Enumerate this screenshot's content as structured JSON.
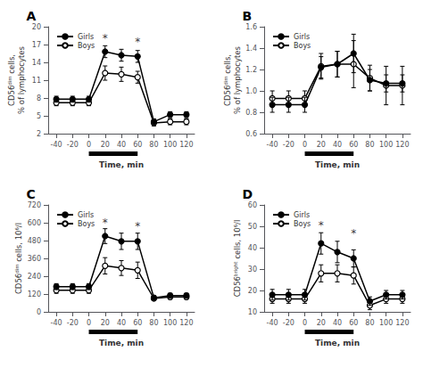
{
  "chart_data": [
    {
      "type": "line",
      "title": "A",
      "x": [
        -40,
        -20,
        0,
        20,
        40,
        60,
        80,
        100,
        120
      ],
      "series": [
        {
          "name": "Girls",
          "color": "#000000",
          "marker": "filled_circle",
          "values": [
            7.8,
            7.8,
            7.8,
            15.8,
            15.2,
            15.0,
            4.0,
            5.2,
            5.2
          ],
          "errors": [
            0.5,
            0.5,
            0.5,
            1.0,
            1.0,
            1.0,
            0.5,
            0.5,
            0.5
          ]
        },
        {
          "name": "Boys",
          "color": "#000000",
          "marker": "open_circle",
          "values": [
            7.2,
            7.2,
            7.2,
            12.2,
            12.0,
            11.5,
            3.8,
            4.0,
            4.0
          ],
          "errors": [
            0.5,
            0.5,
            0.5,
            1.2,
            1.2,
            1.0,
            0.5,
            0.5,
            0.5
          ]
        }
      ],
      "xlabel": "Time, min",
      "ylabel": "CD56ᵈⁱᵐ cells,\n% of lymphocytes",
      "xlim": [
        -50,
        130
      ],
      "xticks": [
        -40,
        -20,
        0,
        20,
        40,
        60,
        80,
        100,
        120
      ],
      "ylim": [
        2,
        20
      ],
      "yticks": [
        2,
        5,
        8,
        11,
        14,
        17,
        20
      ],
      "grid": false,
      "legend": "upper left",
      "annotations": [
        {
          "x": 20,
          "y": 17.2,
          "text": "*"
        },
        {
          "x": 60,
          "y": 16.5,
          "text": "*"
        }
      ],
      "exercise_bar": {
        "start": 0,
        "end": 60
      }
    },
    {
      "type": "line",
      "title": "B",
      "x": [
        -40,
        -20,
        0,
        20,
        40,
        60,
        80,
        100,
        120
      ],
      "series": [
        {
          "name": "Girls",
          "color": "#000000",
          "marker": "filled_circle",
          "values": [
            0.87,
            0.87,
            0.87,
            1.22,
            1.25,
            1.35,
            1.1,
            1.07,
            1.07
          ],
          "errors": [
            0.07,
            0.07,
            0.07,
            0.1,
            0.12,
            0.18,
            0.1,
            0.08,
            0.08
          ]
        },
        {
          "name": "Boys",
          "color": "#000000",
          "marker": "open_circle",
          "values": [
            0.93,
            0.93,
            0.93,
            1.23,
            1.25,
            1.25,
            1.12,
            1.05,
            1.05
          ],
          "errors": [
            0.07,
            0.07,
            0.07,
            0.12,
            0.12,
            0.22,
            0.12,
            0.18,
            0.18
          ]
        }
      ],
      "xlabel": "Time, min",
      "ylabel": "CD56ᵈⁱᵐ cells,\n% of lymphocytes",
      "xlim": [
        -50,
        130
      ],
      "xticks": [
        -40,
        -20,
        0,
        20,
        40,
        60,
        80,
        100,
        120
      ],
      "ylim": [
        0.6,
        1.6
      ],
      "yticks": [
        0.6,
        0.8,
        {
          "value": 1.0,
          "label": "1.0"
        },
        1.2,
        1.4,
        1.6
      ],
      "grid": false,
      "legend": "upper left",
      "annotations": [],
      "exercise_bar": {
        "start": 0,
        "end": 60
      }
    },
    {
      "type": "line",
      "title": "C",
      "x": [
        -40,
        -20,
        0,
        20,
        40,
        60,
        80,
        100,
        120
      ],
      "series": [
        {
          "name": "Girls",
          "color": "#000000",
          "marker": "filled_circle",
          "values": [
            170,
            170,
            170,
            510,
            475,
            475,
            95,
            110,
            110
          ],
          "errors": [
            20,
            20,
            20,
            50,
            55,
            55,
            15,
            15,
            15
          ]
        },
        {
          "name": "Boys",
          "color": "#000000",
          "marker": "open_circle",
          "values": [
            145,
            145,
            145,
            310,
            295,
            280,
            90,
            100,
            100
          ],
          "errors": [
            20,
            20,
            20,
            55,
            50,
            55,
            15,
            15,
            15
          ]
        }
      ],
      "xlabel": "Time, min",
      "ylabel": "CD56ᵈⁱᵐ cells, 10⁶/l",
      "xlim": [
        -50,
        130
      ],
      "xticks": [
        -40,
        -20,
        0,
        20,
        40,
        60,
        80,
        100,
        120
      ],
      "ylim": [
        0,
        720
      ],
      "yticks": [
        0,
        120,
        240,
        360,
        480,
        600,
        720
      ],
      "grid": false,
      "legend": "upper left",
      "annotations": [
        {
          "x": 20,
          "y": 565,
          "text": "*"
        },
        {
          "x": 60,
          "y": 540,
          "text": "*"
        }
      ],
      "exercise_bar": {
        "start": 0,
        "end": 60
      }
    },
    {
      "type": "line",
      "title": "D",
      "x": [
        -40,
        -20,
        0,
        20,
        40,
        60,
        80,
        100,
        120
      ],
      "series": [
        {
          "name": "Girls",
          "color": "#000000",
          "marker": "filled_circle",
          "values": [
            18,
            18,
            18,
            42,
            38,
            35,
            15,
            18,
            18
          ],
          "errors": [
            2.5,
            2.5,
            2.5,
            5,
            5,
            4,
            2,
            2,
            2
          ]
        },
        {
          "name": "Boys",
          "color": "#000000",
          "marker": "open_circle",
          "values": [
            16,
            16,
            16,
            28,
            28,
            27,
            13,
            16,
            16
          ],
          "errors": [
            2,
            2,
            2,
            4,
            4,
            4,
            2,
            2,
            2
          ]
        }
      ],
      "xlabel": "Time, min",
      "ylabel": "CD56ᵇʳⁱᵍʰᵗ cells, 10⁶/l",
      "xlim": [
        -50,
        130
      ],
      "xticks": [
        -40,
        -20,
        0,
        20,
        40,
        60,
        80,
        100,
        120
      ],
      "ylim": [
        10,
        60
      ],
      "yticks": [
        10,
        20,
        30,
        40,
        50,
        60
      ],
      "grid": false,
      "legend": "upper left",
      "annotations": [
        {
          "x": 20,
          "y": 48,
          "text": "*"
        },
        {
          "x": 60,
          "y": 44,
          "text": "*"
        }
      ],
      "exercise_bar": {
        "start": 0,
        "end": 60
      }
    }
  ]
}
